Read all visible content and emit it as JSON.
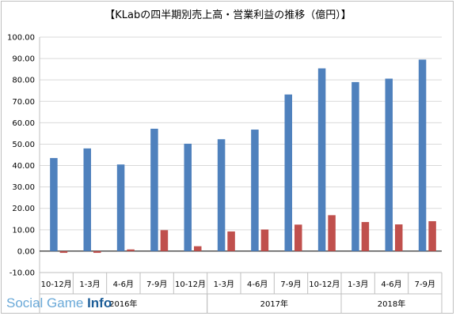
{
  "chart_data": {
    "type": "bar",
    "title": "【KLabの四半期別売上高・営業利益の推移（億円）】",
    "xlabel": "",
    "ylabel": "",
    "ylim": [
      -10,
      100
    ],
    "yticks": [
      "-10.00",
      "0.00",
      "10.00",
      "20.00",
      "30.00",
      "40.00",
      "50.00",
      "60.00",
      "70.00",
      "80.00",
      "90.00",
      "100.00"
    ],
    "grid": true,
    "categories": [
      "10-12月",
      "1-3月",
      "4-6月",
      "7-9月",
      "10-12月",
      "1-3月",
      "4-6月",
      "7-9月",
      "10-12月",
      "1-3月",
      "4-6月",
      "7-9月"
    ],
    "year_groups": [
      {
        "label": "2016年",
        "start": 0,
        "end": 4
      },
      {
        "label": "2017年",
        "start": 5,
        "end": 8
      },
      {
        "label": "2018年",
        "start": 9,
        "end": 11
      }
    ],
    "series": [
      {
        "values": [
          43.5,
          48.0,
          40.5,
          57.2,
          50.2,
          52.3,
          56.8,
          73.2,
          85.4,
          79.0,
          80.6,
          89.5
        ],
        "color": "#4f81bd"
      },
      {
        "values": [
          -0.8,
          -0.8,
          0.8,
          9.8,
          2.3,
          9.2,
          10.1,
          12.4,
          16.8,
          13.6,
          12.5,
          14.0
        ],
        "color": "#c0504d"
      }
    ]
  },
  "watermark": {
    "part1": "Social ",
    "part2": "Game ",
    "part3": "Info"
  }
}
